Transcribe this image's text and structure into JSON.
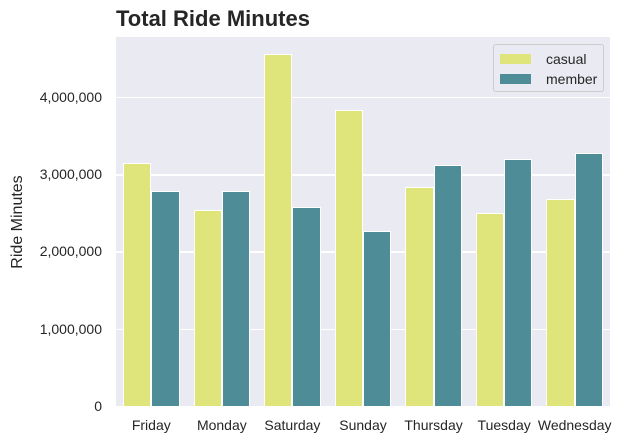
{
  "chart_data": {
    "type": "bar",
    "title": "Total Ride Minutes",
    "xlabel": "",
    "ylabel": "Ride Minutes",
    "categories": [
      "Friday",
      "Monday",
      "Saturday",
      "Sunday",
      "Thursday",
      "Tuesday",
      "Wednesday"
    ],
    "series": [
      {
        "name": "casual",
        "color": "#dfe57a",
        "values": [
          3140000,
          2540000,
          4550000,
          3830000,
          2830000,
          2500000,
          2680000
        ]
      },
      {
        "name": "member",
        "color": "#4e8c98",
        "values": [
          2780000,
          2780000,
          2580000,
          2270000,
          3120000,
          3200000,
          3270000
        ]
      }
    ],
    "yticks": [
      0,
      1000000,
      2000000,
      3000000,
      4000000
    ],
    "ytick_labels": [
      "0",
      "1,000,000",
      "2,000,000",
      "3,000,000",
      "4,000,000"
    ],
    "ylim": [
      0,
      4775000
    ],
    "grid": true,
    "legend_position": "upper right",
    "background": "#eaeaf2"
  },
  "legend": {
    "items": [
      {
        "label": "casual",
        "color": "#dfe57a"
      },
      {
        "label": "member",
        "color": "#4e8c98"
      }
    ]
  }
}
